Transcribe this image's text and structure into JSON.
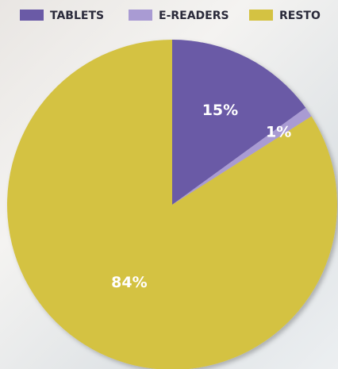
{
  "chart_data": {
    "type": "pie",
    "categories": [
      "TABLETS",
      "E-READERS",
      "RESTO"
    ],
    "values": [
      15,
      1,
      84
    ],
    "value_labels": [
      "15%",
      "1%",
      "84%"
    ],
    "colors": [
      "#6a5aa6",
      "#a99bd3",
      "#d4c242"
    ],
    "legend": "top"
  }
}
